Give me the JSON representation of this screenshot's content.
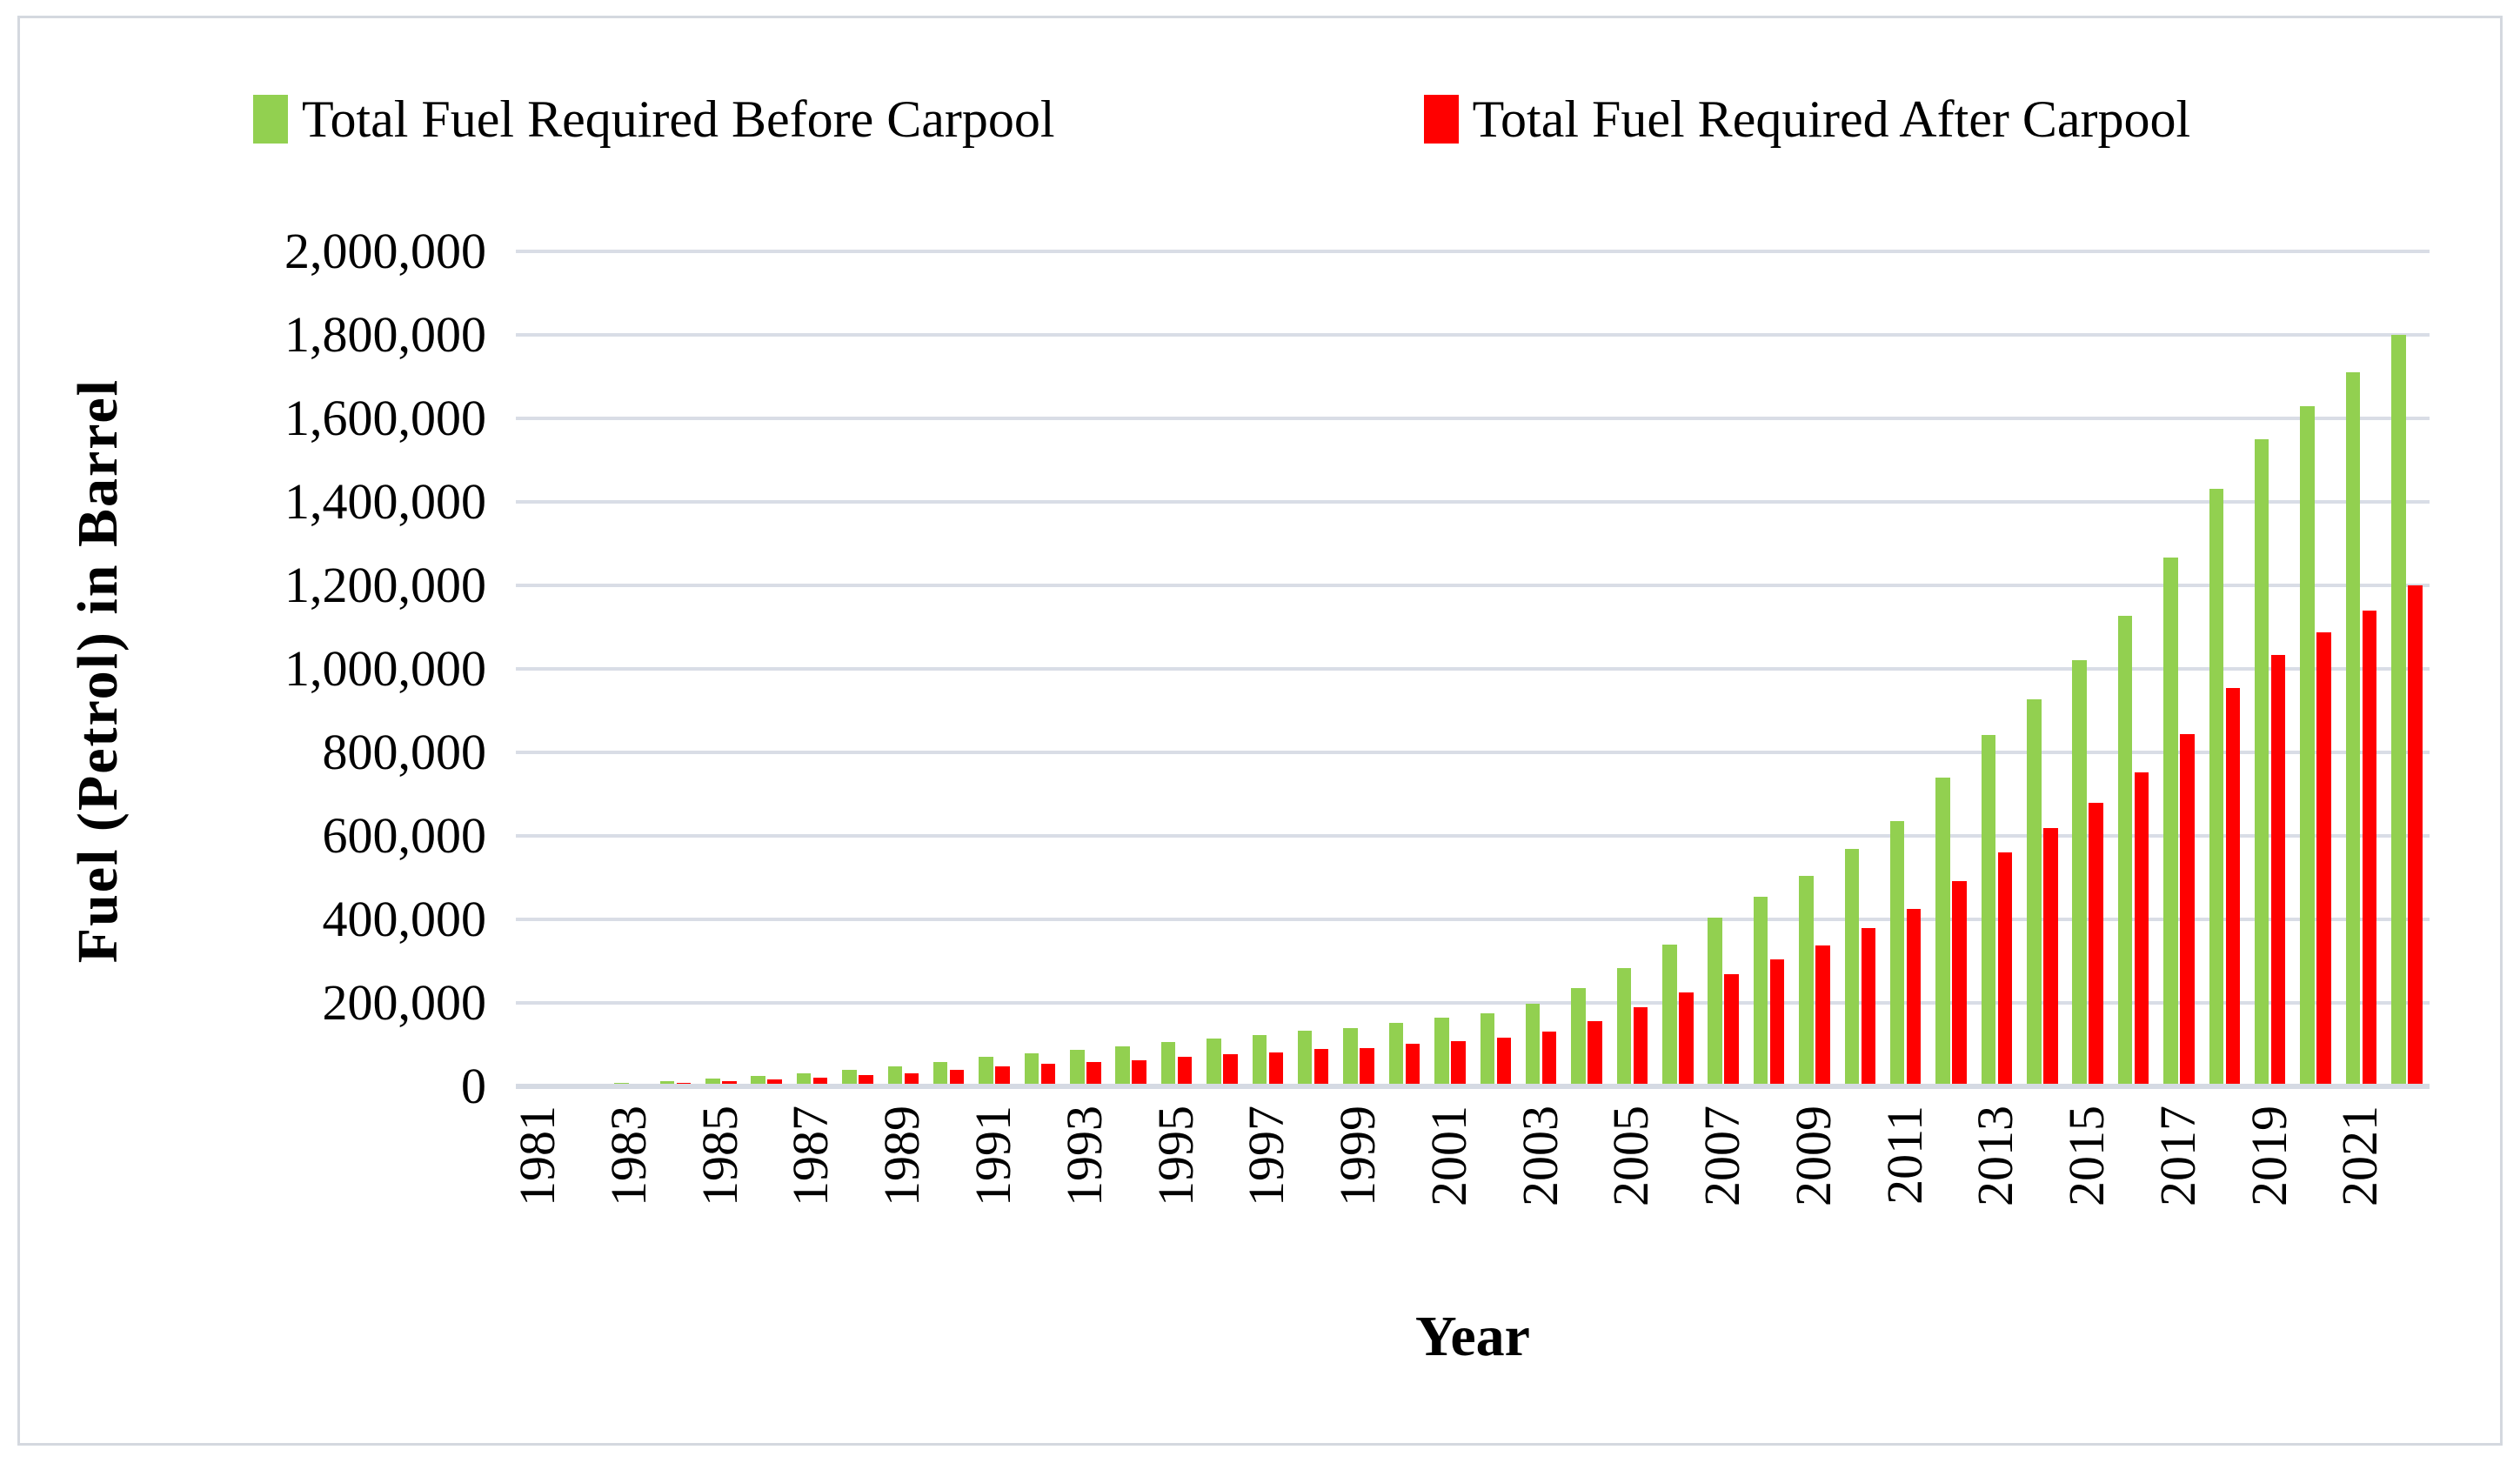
{
  "legend": {
    "before_label": "Total Fuel Required Before Carpool",
    "after_label": "Total Fuel Required After Carpool"
  },
  "colors": {
    "before": "#92D050",
    "after": "#FF0000",
    "gridline": "#D9DDE6",
    "axis_line": "#D5DAE3",
    "border": "#D4D8DF",
    "text": "#000000"
  },
  "chart_data": {
    "type": "bar",
    "title": "",
    "xlabel": "Year",
    "ylabel": "Fuel (Petrol) in Barrel",
    "ylim": [
      0,
      2000000
    ],
    "y_tick_step": 200000,
    "y_tick_labels": [
      "0",
      "200,000",
      "400,000",
      "600,000",
      "800,000",
      "1,000,000",
      "1,200,000",
      "1,400,000",
      "1,600,000",
      "1,800,000",
      "2,000,000"
    ],
    "x_tick_labels": [
      "1981",
      "1983",
      "1985",
      "1987",
      "1989",
      "1991",
      "1993",
      "1995",
      "1997",
      "1999",
      "2001",
      "2003",
      "2005",
      "2007",
      "2009",
      "2011",
      "2013",
      "2015",
      "2017",
      "2019",
      "2021"
    ],
    "grid": "horizontal",
    "legend_position": "top",
    "categories": [
      1981,
      1982,
      1983,
      1984,
      1985,
      1986,
      1987,
      1988,
      1989,
      1990,
      1991,
      1992,
      1993,
      1994,
      1995,
      1996,
      1997,
      1998,
      1999,
      2000,
      2001,
      2002,
      2003,
      2004,
      2005,
      2006,
      2007,
      2008,
      2009,
      2010,
      2011,
      2012,
      2013,
      2014,
      2015,
      2016,
      2017,
      2018,
      2019,
      2020,
      2021,
      2022
    ],
    "series": [
      {
        "name": "Total Fuel Required Before Carpool",
        "color": "#92D050",
        "values": [
          3000,
          4500,
          7500,
          12000,
          19000,
          26000,
          32000,
          40000,
          47000,
          58000,
          71000,
          80000,
          88000,
          95000,
          106000,
          115000,
          122000,
          133000,
          139000,
          152000,
          164000,
          175000,
          197000,
          235000,
          283000,
          339000,
          404000,
          455000,
          505000,
          568000,
          636000,
          739000,
          842000,
          928000,
          1020000,
          1127000,
          1266000,
          1431000,
          1549000,
          1630000,
          1710000,
          1800000
        ]
      },
      {
        "name": "Total Fuel Required After Carpool",
        "color": "#FF0000",
        "values": [
          2000,
          3000,
          5000,
          8000,
          12700,
          17300,
          21300,
          26700,
          31300,
          38700,
          47300,
          53300,
          58700,
          63300,
          70700,
          76700,
          81300,
          88700,
          92700,
          101300,
          109300,
          116700,
          131300,
          156700,
          188700,
          226000,
          269300,
          303300,
          336700,
          378700,
          424000,
          492700,
          561300,
          618700,
          680000,
          751300,
          844000,
          954000,
          1032700,
          1086700,
          1140000,
          1200000
        ]
      }
    ]
  }
}
